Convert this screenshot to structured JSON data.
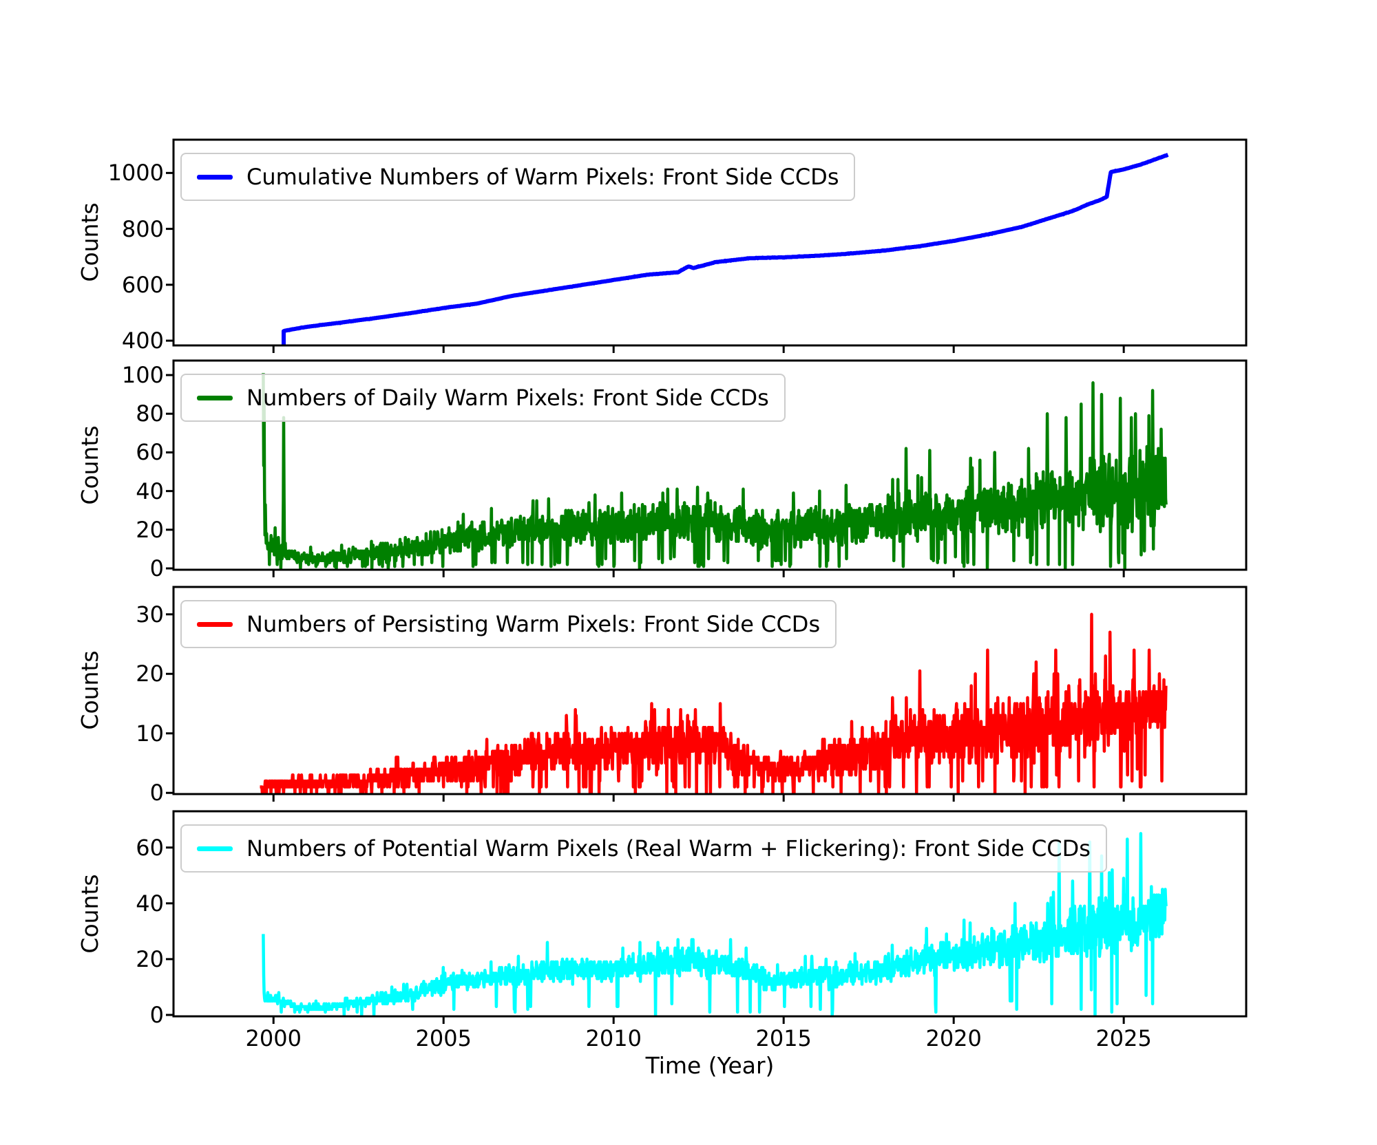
{
  "axis": {
    "xlabel": "Time (Year)",
    "ylabel": "Counts",
    "xlim": [
      1997.06,
      2028.6
    ],
    "xticks": [
      2000,
      2005,
      2010,
      2015,
      2020,
      2025
    ],
    "xtick_labels": [
      "2000",
      "2005",
      "2010",
      "2015",
      "2020",
      "2025"
    ]
  },
  "chart_data": [
    {
      "type": "line",
      "legend": "Cumulative Numbers of Warm Pixels: Front Side CCDs",
      "color": "#0000FF",
      "ylim": [
        383,
        1119
      ],
      "yticks": [
        400,
        600,
        800,
        1000
      ],
      "ytick_labels": [
        "400",
        "600",
        "800",
        "1000"
      ],
      "x_start": 2000.3,
      "x_end": 2026.3,
      "style": "cumulative-step",
      "series_x": [
        2000.3,
        2001,
        2002,
        2003,
        2004,
        2005,
        2006,
        2007,
        2008,
        2009,
        2010,
        2011,
        2011.9,
        2012.2,
        2012.35,
        2013,
        2014,
        2015,
        2016,
        2017,
        2018,
        2019,
        2020,
        2021,
        2022,
        2023,
        2023.5,
        2024,
        2024.35,
        2024.5,
        2024.62,
        2024.8,
        2025,
        2025.5,
        2026,
        2026.3
      ],
      "series_y": [
        435,
        450,
        465,
        481,
        498,
        517,
        533,
        560,
        579,
        598,
        617,
        636,
        645,
        666,
        660,
        681,
        695,
        698,
        704,
        712,
        723,
        738,
        757,
        780,
        807,
        845,
        864,
        890,
        905,
        915,
        1003,
        1008,
        1013,
        1030,
        1052,
        1065
      ],
      "start_jump_from": 383,
      "noise": {
        "seed": 7,
        "dt": 0.02,
        "jitter": 1
      }
    },
    {
      "type": "line",
      "legend": "Numbers of Daily Warm Pixels: Front Side CCDs",
      "color": "#008000",
      "ylim": [
        -0.7,
        107.5
      ],
      "yticks": [
        0,
        20,
        40,
        60,
        80,
        100
      ],
      "ytick_labels": [
        "0",
        "20",
        "40",
        "60",
        "80",
        "100"
      ],
      "x_start": 1999.7,
      "x_end": 2026.25,
      "style": "noisy-daily",
      "trend_x": [
        1999.7,
        2000.0,
        2000.4,
        2000.8,
        2001.5,
        2002.5,
        2003.5,
        2004.5,
        2005.5,
        2006.5,
        2007.5,
        2008.5,
        2009.5,
        2010.5,
        2011.5,
        2012.5,
        2013.5,
        2014.5,
        2015.5,
        2016.5,
        2017.5,
        2018.5,
        2019.5,
        2020.5,
        2021.5,
        2022.5,
        2023.5,
        2024.5,
        2025.5,
        2026.25
      ],
      "trend_mean": [
        14,
        12,
        8,
        6,
        5,
        7,
        9,
        12,
        15,
        17,
        20,
        21,
        21,
        23,
        24,
        24,
        23,
        20,
        20,
        22,
        24,
        27,
        29,
        30,
        31,
        33,
        37,
        40,
        42,
        42
      ],
      "trend_spread": [
        6,
        6,
        5,
        4,
        4,
        5,
        6,
        7,
        8,
        9,
        10,
        10,
        11,
        11,
        12,
        12,
        12,
        12,
        12,
        12,
        13,
        14,
        15,
        15,
        16,
        18,
        21,
        24,
        24,
        24
      ],
      "notable_spikes": [
        [
          1999.7,
          101
        ],
        [
          1999.72,
          86
        ],
        [
          1999.76,
          33
        ],
        [
          2000.05,
          21
        ],
        [
          2000.3,
          78
        ],
        [
          2018.6,
          62
        ],
        [
          2019.3,
          61
        ],
        [
          2020.5,
          57
        ],
        [
          2021.2,
          60
        ],
        [
          2022.2,
          62
        ],
        [
          2022.75,
          80
        ],
        [
          2023.3,
          78
        ],
        [
          2023.75,
          85
        ],
        [
          2024.1,
          96
        ],
        [
          2024.35,
          90
        ],
        [
          2024.9,
          88
        ],
        [
          2025.35,
          80
        ],
        [
          2025.85,
          92
        ],
        [
          2026.1,
          72
        ]
      ],
      "noise": {
        "seed": 11,
        "dt": 0.012,
        "dip_prob": 0.05,
        "burst_prob": 0.012
      }
    },
    {
      "type": "line",
      "legend": "Numbers of Persisting Warm Pixels: Front Side CCDs",
      "color": "#FF0000",
      "ylim": [
        -0.2,
        34.6
      ],
      "yticks": [
        0,
        10,
        20,
        30
      ],
      "ytick_labels": [
        "0",
        "10",
        "20",
        "30"
      ],
      "x_start": 1999.6,
      "x_end": 2026.25,
      "style": "noisy-daily",
      "trend_x": [
        1999.6,
        2000.5,
        2001.5,
        2002.5,
        2003.5,
        2004.5,
        2005.5,
        2006.5,
        2007.5,
        2008.5,
        2009.5,
        2010.5,
        2011.5,
        2012.5,
        2013.3,
        2014.0,
        2014.8,
        2015.5,
        2016.5,
        2017.5,
        2018.5,
        2019.5,
        2020.5,
        2021.5,
        2022.5,
        2023.5,
        2024.5,
        2025.5,
        2026.25
      ],
      "trend_mean": [
        1,
        1.5,
        1.7,
        2,
        2.5,
        3.5,
        4,
        5,
        6.5,
        7,
        7,
        8,
        8,
        8.5,
        7.5,
        5,
        3.8,
        4.2,
        6,
        7,
        9,
        10,
        10,
        11,
        11,
        12,
        13,
        14,
        15
      ],
      "trend_spread": [
        1.2,
        1.4,
        1.5,
        1.6,
        2,
        2.5,
        3,
        3.2,
        4,
        4,
        4.2,
        4.5,
        4.5,
        4.5,
        4.2,
        3,
        2.5,
        3,
        4,
        4.5,
        5,
        6,
        6,
        6.5,
        6.5,
        7,
        7.5,
        7,
        6
      ],
      "notable_spikes": [
        [
          2012.4,
          14
        ],
        [
          2018.2,
          16
        ],
        [
          2019.0,
          20.5
        ],
        [
          2021.0,
          24
        ],
        [
          2023.0,
          24
        ],
        [
          2024.05,
          30
        ],
        [
          2024.6,
          27
        ],
        [
          2025.3,
          24
        ],
        [
          2025.75,
          24
        ]
      ],
      "noise": {
        "seed": 22,
        "dt": 0.012,
        "dip_prob": 0.06,
        "burst_prob": 0.01
      }
    },
    {
      "type": "line",
      "legend": "Numbers of Potential Warm Pixels (Real Warm + Flickering): Front Side CCDs",
      "color": "#00FFFF",
      "ylim": [
        -0.5,
        73
      ],
      "yticks": [
        0,
        20,
        40,
        60
      ],
      "ytick_labels": [
        "0",
        "20",
        "40",
        "60"
      ],
      "x_start": 1999.7,
      "x_end": 2026.25,
      "style": "noisy-daily",
      "trend_x": [
        1999.7,
        2000.2,
        2000.8,
        2001.4,
        2002.2,
        2003,
        2004,
        2004.7,
        2005.5,
        2006.5,
        2007.5,
        2008.5,
        2009.5,
        2010.5,
        2011.5,
        2012.5,
        2013.3,
        2014,
        2014.8,
        2015.5,
        2016.5,
        2017.5,
        2018.5,
        2019.5,
        2020.5,
        2021.5,
        2022.5,
        2023.5,
        2024.5,
        2025.5,
        2026.25
      ],
      "trend_mean": [
        6,
        5,
        2.5,
        2.5,
        4,
        5.5,
        7,
        10,
        12,
        13,
        15,
        16,
        16,
        17,
        19,
        19,
        18,
        15,
        12,
        13,
        14,
        15,
        18,
        20,
        22,
        24,
        26,
        30,
        32,
        34,
        38
      ],
      "trend_spread": [
        2.5,
        2,
        1.5,
        1.5,
        2,
        2.5,
        3,
        3.5,
        4,
        4,
        5,
        5,
        5,
        5.5,
        6,
        6,
        6,
        5,
        4.5,
        5,
        5,
        5,
        6,
        7,
        7,
        8,
        9,
        12,
        12,
        12,
        10
      ],
      "notable_spikes": [
        [
          1999.7,
          29
        ],
        [
          2008.05,
          26
        ],
        [
          2011.3,
          26
        ],
        [
          2012.3,
          27
        ],
        [
          2019.2,
          31
        ],
        [
          2020.3,
          34
        ],
        [
          2021.8,
          40
        ],
        [
          2023.1,
          62
        ],
        [
          2023.5,
          48
        ],
        [
          2024.0,
          62
        ],
        [
          2024.35,
          57
        ],
        [
          2025.1,
          63
        ],
        [
          2025.5,
          65
        ]
      ],
      "noise": {
        "seed": 33,
        "dt": 0.012,
        "dip_prob": 0.02,
        "burst_prob": 0.01
      }
    }
  ]
}
